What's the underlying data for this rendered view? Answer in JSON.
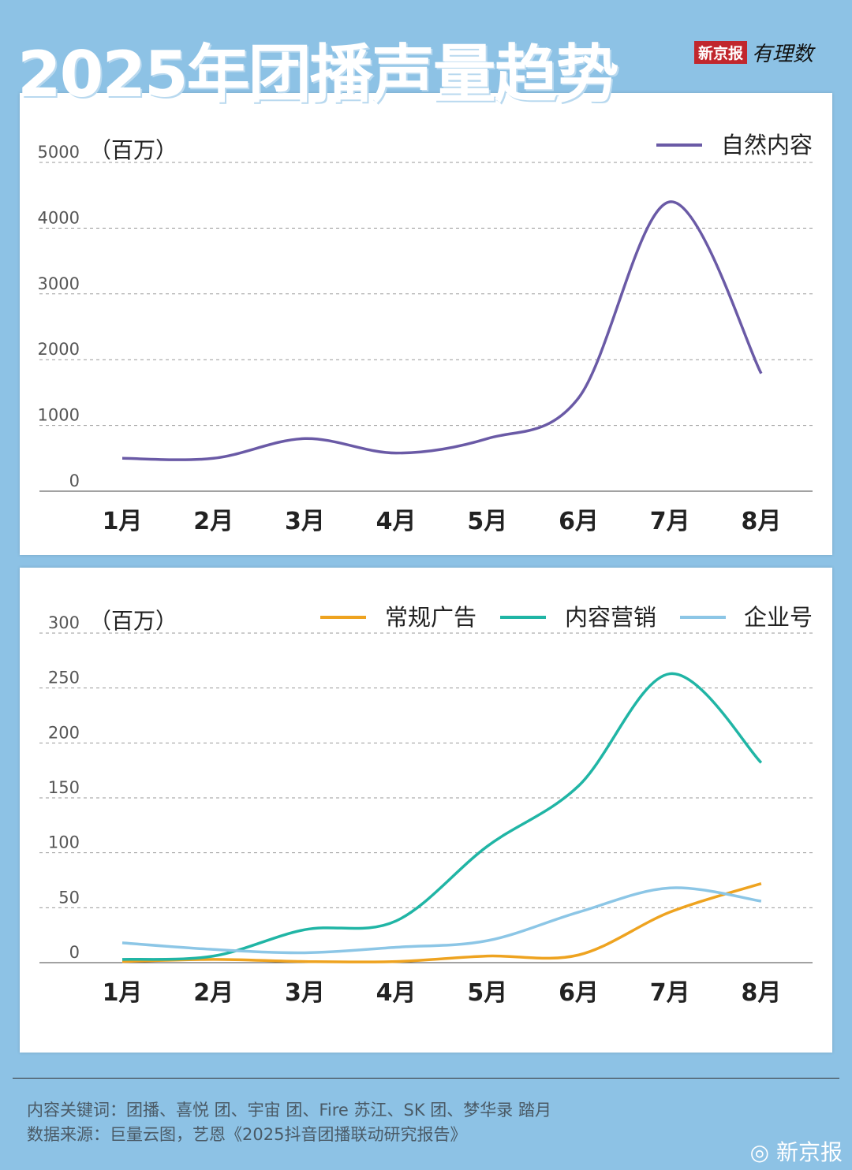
{
  "title": "2025年团播声量趋势",
  "logo": {
    "brand": "新京报",
    "sub": "有理数"
  },
  "colors": {
    "background": "#8dc2e5",
    "natural": "#6a5aa6",
    "ads": "#eea320",
    "content": "#20b5a5",
    "enterprise": "#8cc6e6"
  },
  "chart_data": [
    {
      "type": "line",
      "unit": "（百万）",
      "categories": [
        "1月",
        "2月",
        "3月",
        "4月",
        "5月",
        "6月",
        "7月",
        "8月"
      ],
      "ylim": [
        0,
        5000
      ],
      "yticks": [
        0,
        1000,
        2000,
        3000,
        4000,
        5000
      ],
      "grid": true,
      "legend": "top-right",
      "series": [
        {
          "name": "自然内容",
          "color": "#6a5aa6",
          "values": [
            500,
            500,
            800,
            580,
            800,
            1420,
            4400,
            1790
          ]
        }
      ]
    },
    {
      "type": "line",
      "unit": "（百万）",
      "categories": [
        "1月",
        "2月",
        "3月",
        "4月",
        "5月",
        "6月",
        "7月",
        "8月"
      ],
      "ylim": [
        0,
        300
      ],
      "yticks": [
        0,
        50,
        100,
        150,
        200,
        250,
        300
      ],
      "grid": true,
      "legend": "top-right",
      "series": [
        {
          "name": "常规广告",
          "color": "#eea320",
          "values": [
            1,
            3,
            1,
            1,
            6,
            7,
            46,
            72
          ]
        },
        {
          "name": "内容营销",
          "color": "#20b5a5",
          "values": [
            3,
            6,
            30,
            38,
            106,
            161,
            263,
            182
          ]
        },
        {
          "name": "企业号",
          "color": "#8cc6e6",
          "values": [
            18,
            12,
            9,
            14,
            20,
            46,
            68,
            56
          ]
        }
      ]
    }
  ],
  "footer": {
    "keywords": "内容关键词：团播、喜悦 团、宇宙 团、Fire 苏江、SK 团、梦华录 踏月",
    "source": "数据来源：巨量云图，艺恩《2025抖音团播联动研究报告》",
    "watermark": "新京报"
  }
}
